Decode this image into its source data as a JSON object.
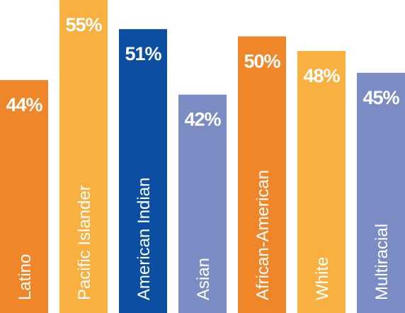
{
  "chart_data": {
    "type": "bar",
    "categories": [
      "Latino",
      "Pacific Islander",
      "American Indian",
      "Asian",
      "African-American",
      "White",
      "Multiracial"
    ],
    "values": [
      44,
      55,
      51,
      42,
      50,
      48,
      45
    ],
    "value_labels": [
      "44%",
      "55%",
      "51%",
      "42%",
      "50%",
      "48%",
      "45%"
    ],
    "colors": [
      "#f0862a",
      "#f8b040",
      "#0b4ea2",
      "#7b8cc4",
      "#f0862a",
      "#f8b040",
      "#7b8cc4"
    ],
    "ylim": [
      12,
      55
    ]
  }
}
